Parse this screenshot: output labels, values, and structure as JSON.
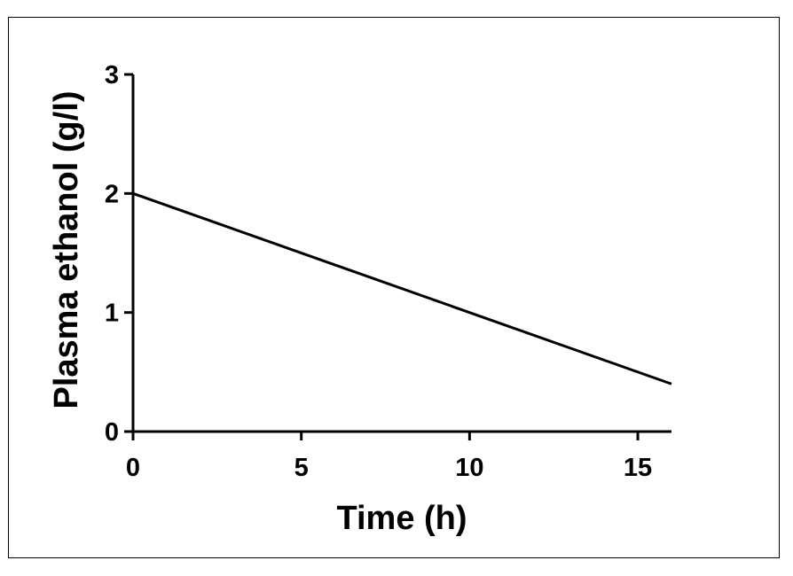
{
  "chart_data": {
    "type": "line",
    "title": "",
    "xlabel": "Time (h)",
    "ylabel": "Plasma ethanol (g/l)",
    "xlim": [
      0,
      16
    ],
    "ylim": [
      0,
      3
    ],
    "xticks": [
      0,
      5,
      10,
      15
    ],
    "yticks": [
      0,
      1,
      2,
      3
    ],
    "xtick_labels": [
      "0",
      "5",
      "10",
      "15"
    ],
    "ytick_labels": [
      "0",
      "1",
      "2",
      "3"
    ],
    "grid": false,
    "legend": "none",
    "series": [
      {
        "color": "#000000",
        "x": [
          0,
          16
        ],
        "y": [
          2.0,
          0.4
        ]
      }
    ]
  }
}
